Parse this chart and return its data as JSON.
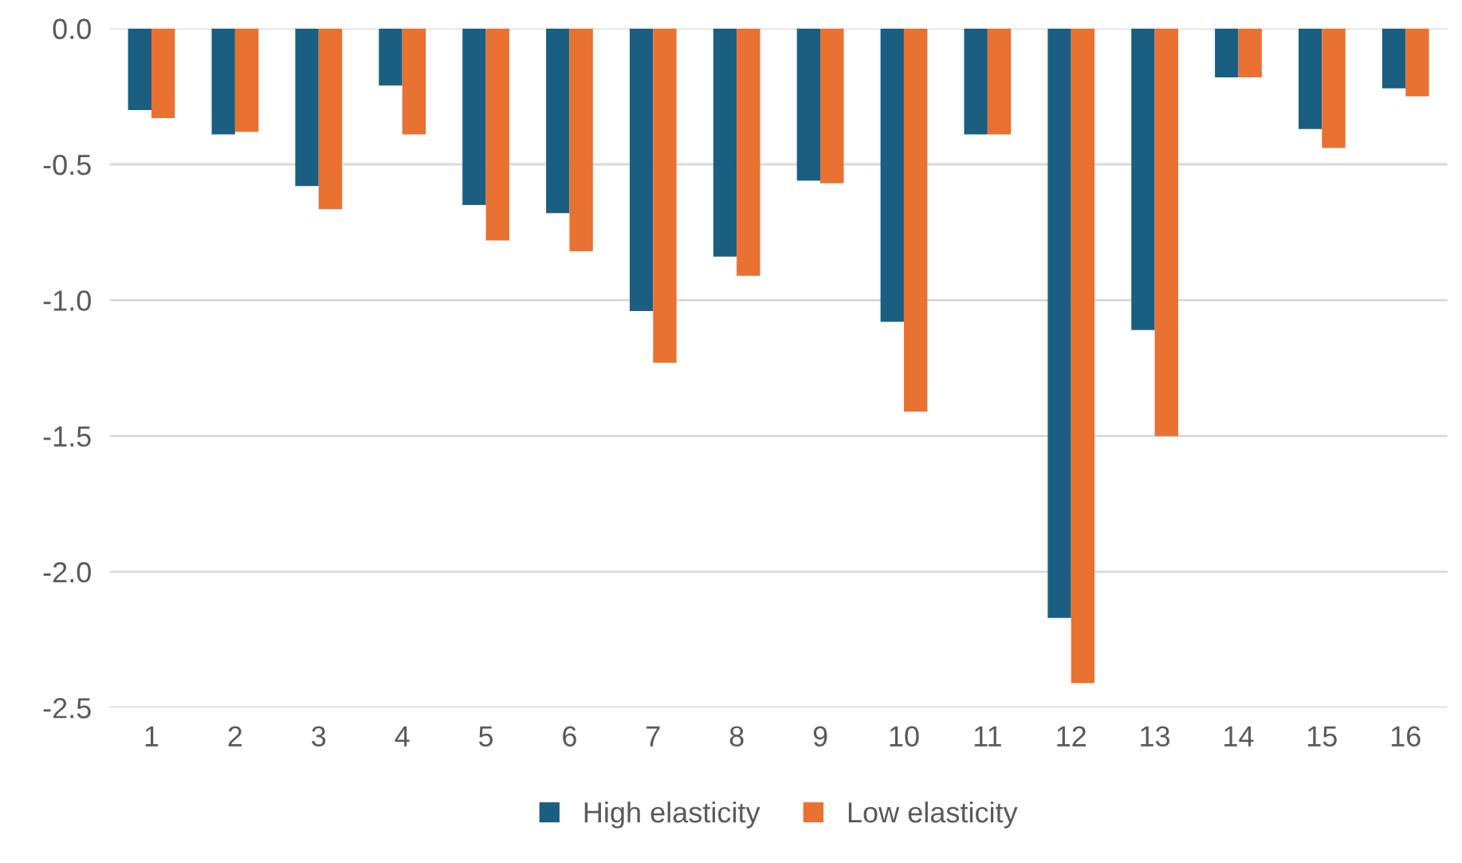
{
  "chart_data": {
    "type": "bar",
    "categories": [
      "1",
      "2",
      "3",
      "4",
      "5",
      "6",
      "7",
      "8",
      "9",
      "10",
      "11",
      "12",
      "13",
      "14",
      "15",
      "16"
    ],
    "series": [
      {
        "name": "High elasticity",
        "color": "#1a5f82",
        "values": [
          -0.3,
          -0.39,
          -0.58,
          -0.21,
          -0.65,
          -0.68,
          -1.04,
          -0.84,
          -0.56,
          -1.08,
          -0.39,
          -2.17,
          -1.11,
          -0.18,
          -0.37,
          -0.22
        ]
      },
      {
        "name": "Low elasticity",
        "color": "#e97132",
        "values": [
          -0.33,
          -0.38,
          -0.665,
          -0.39,
          -0.78,
          -0.82,
          -1.23,
          -0.91,
          -0.57,
          -1.41,
          -0.39,
          -2.41,
          -1.5,
          -0.18,
          -0.44,
          -0.25
        ]
      }
    ],
    "ylim": [
      -2.5,
      0
    ],
    "yticks": [
      {
        "value": -2.5,
        "label": "-2.5"
      },
      {
        "value": -2.0,
        "label": "-2.0"
      },
      {
        "value": -1.5,
        "label": "-1.5"
      },
      {
        "value": -1.0,
        "label": "-1.0"
      },
      {
        "value": -0.5,
        "label": "-0.5"
      },
      {
        "value": 0,
        "label": "0.0"
      }
    ],
    "grid": "y",
    "legend": "bottom"
  }
}
